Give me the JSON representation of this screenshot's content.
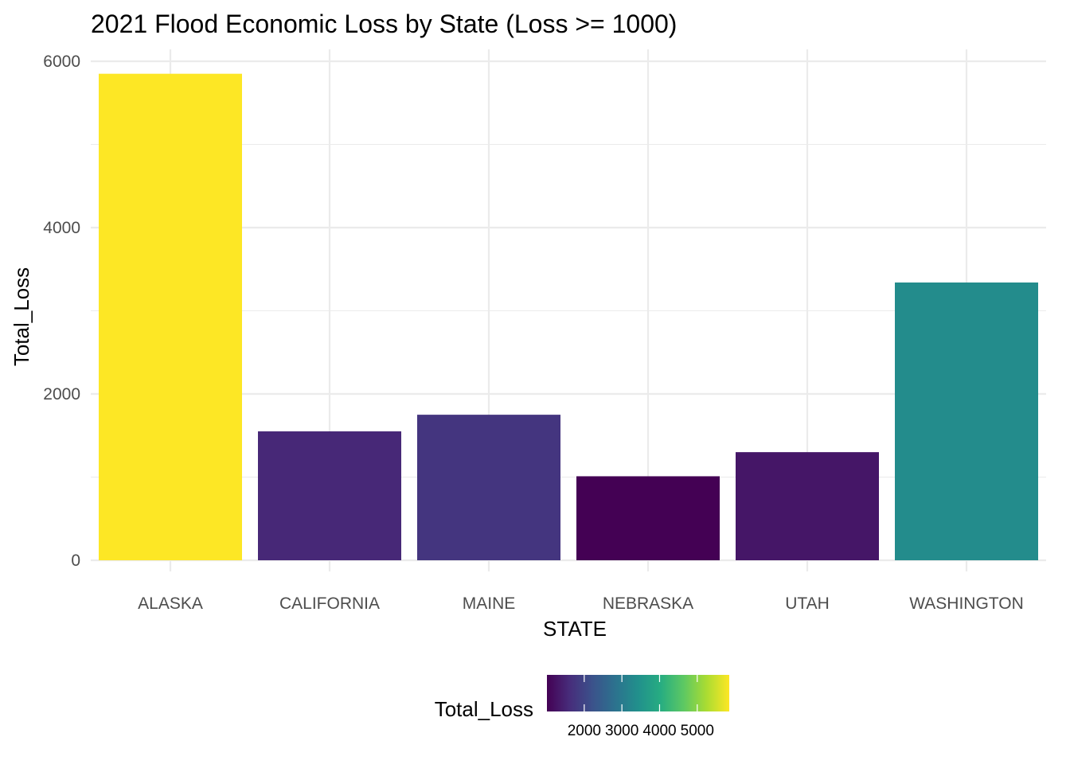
{
  "chart_data": {
    "type": "bar",
    "title": "2021 Flood Economic Loss by State (Loss >= 1000)",
    "xlabel": "STATE",
    "ylabel": "Total_Loss",
    "categories": [
      "ALASKA",
      "CALIFORNIA",
      "MAINE",
      "NEBRASKA",
      "UTAH",
      "WASHINGTON"
    ],
    "values": [
      5850,
      1550,
      1750,
      1010,
      1300,
      3340
    ],
    "ylim": [
      0,
      6000
    ],
    "y_ticks": [
      0,
      2000,
      4000,
      6000
    ],
    "y_tick_labels": [
      "0",
      "2000",
      "4000",
      "6000"
    ],
    "grid": true,
    "fill_scale": "viridis",
    "legend": {
      "title": "Total_Loss",
      "position": "bottom",
      "range": [
        1010,
        5850
      ],
      "ticks": [
        2000,
        3000,
        4000,
        5000
      ],
      "tick_labels": [
        "2000",
        "3000",
        "4000",
        "5000"
      ]
    }
  }
}
